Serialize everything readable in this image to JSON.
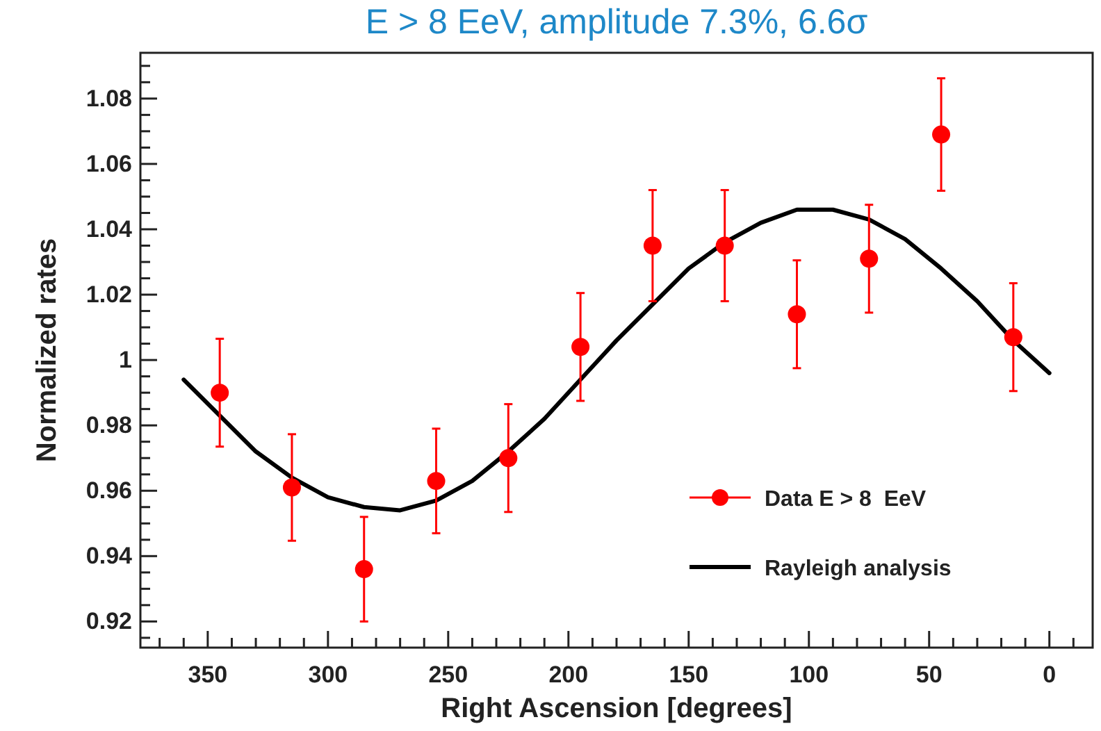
{
  "chart_data": {
    "type": "scatter",
    "title": "E > 8 EeV, amplitude 7.3%, 6.6σ",
    "xlabel": "Right Ascension [degrees]",
    "ylabel": "Normalized rates",
    "xlim": [
      378,
      -18
    ],
    "ylim": [
      0.912,
      1.094
    ],
    "xticks": [
      {
        "value": 370,
        "label": null
      },
      {
        "value": 360,
        "label": null
      },
      350,
      {
        "value": 340,
        "label": null
      },
      {
        "value": 330,
        "label": null
      },
      {
        "value": 320,
        "label": null
      },
      {
        "value": 310,
        "label": null
      },
      300,
      {
        "value": 290,
        "label": null
      },
      {
        "value": 280,
        "label": null
      },
      {
        "value": 270,
        "label": null
      },
      {
        "value": 260,
        "label": null
      },
      250,
      {
        "value": 240,
        "label": null
      },
      {
        "value": 230,
        "label": null
      },
      {
        "value": 220,
        "label": null
      },
      {
        "value": 210,
        "label": null
      },
      200,
      {
        "value": 190,
        "label": null
      },
      {
        "value": 180,
        "label": null
      },
      {
        "value": 170,
        "label": null
      },
      {
        "value": 160,
        "label": null
      },
      150,
      {
        "value": 140,
        "label": null
      },
      {
        "value": 130,
        "label": null
      },
      {
        "value": 120,
        "label": null
      },
      {
        "value": 110,
        "label": null
      },
      100,
      {
        "value": 90,
        "label": null
      },
      {
        "value": 80,
        "label": null
      },
      {
        "value": 70,
        "label": null
      },
      {
        "value": 60,
        "label": null
      },
      50,
      {
        "value": 40,
        "label": null
      },
      {
        "value": 30,
        "label": null
      },
      {
        "value": 20,
        "label": null
      },
      {
        "value": 10,
        "label": null
      },
      0,
      {
        "value": -10,
        "label": null
      }
    ],
    "yticks": [
      {
        "value": 0.915,
        "label": null
      },
      0.92,
      {
        "value": 0.925,
        "label": null
      },
      {
        "value": 0.93,
        "label": null
      },
      {
        "value": 0.935,
        "label": null
      },
      0.94,
      {
        "value": 0.945,
        "label": null
      },
      {
        "value": 0.95,
        "label": null
      },
      {
        "value": 0.955,
        "label": null
      },
      0.96,
      {
        "value": 0.965,
        "label": null
      },
      {
        "value": 0.97,
        "label": null
      },
      {
        "value": 0.975,
        "label": null
      },
      0.98,
      {
        "value": 0.985,
        "label": null
      },
      {
        "value": 0.99,
        "label": null
      },
      {
        "value": 0.995,
        "label": null
      },
      1,
      {
        "value": 1.005,
        "label": null
      },
      {
        "value": 1.01,
        "label": null
      },
      {
        "value": 1.015,
        "label": null
      },
      1.02,
      {
        "value": 1.025,
        "label": null
      },
      {
        "value": 1.03,
        "label": null
      },
      {
        "value": 1.035,
        "label": null
      },
      1.04,
      {
        "value": 1.045,
        "label": null
      },
      {
        "value": 1.05,
        "label": null
      },
      {
        "value": 1.055,
        "label": null
      },
      1.06,
      {
        "value": 1.065,
        "label": null
      },
      {
        "value": 1.07,
        "label": null
      },
      {
        "value": 1.075,
        "label": null
      },
      1.08,
      {
        "value": 1.085,
        "label": null
      },
      {
        "value": 1.09,
        "label": null
      }
    ],
    "grid": false,
    "legend": "bottom right",
    "series": [
      {
        "name": "Data E > 8  EeV",
        "type": "scatter",
        "color": "#ff0000",
        "marker": "circle",
        "x": [
          345,
          315,
          285,
          255,
          225,
          195,
          165,
          135,
          105,
          75,
          45,
          15
        ],
        "values": [
          0.99,
          0.961,
          0.936,
          0.963,
          0.97,
          1.004,
          1.035,
          1.035,
          1.014,
          1.031,
          1.069,
          1.007
        ],
        "errors": [
          0.0165,
          0.0163,
          0.016,
          0.016,
          0.0165,
          0.0165,
          0.017,
          0.017,
          0.0165,
          0.0165,
          0.0172,
          0.0165
        ]
      },
      {
        "name": "Rayleigh analysis",
        "type": "line",
        "color": "#000000",
        "line_style": "solid",
        "x": [
          360,
          345,
          330,
          315,
          300,
          285,
          270,
          255,
          240,
          225,
          210,
          195,
          180,
          165,
          150,
          135,
          120,
          105,
          90,
          75,
          60,
          45,
          30,
          15,
          0
        ],
        "values": [
          0.994,
          0.983,
          0.972,
          0.964,
          0.958,
          0.955,
          0.954,
          0.957,
          0.963,
          0.972,
          0.982,
          0.994,
          1.006,
          1.017,
          1.028,
          1.036,
          1.042,
          1.046,
          1.046,
          1.043,
          1.037,
          1.028,
          1.018,
          1.006,
          0.996
        ]
      }
    ]
  }
}
